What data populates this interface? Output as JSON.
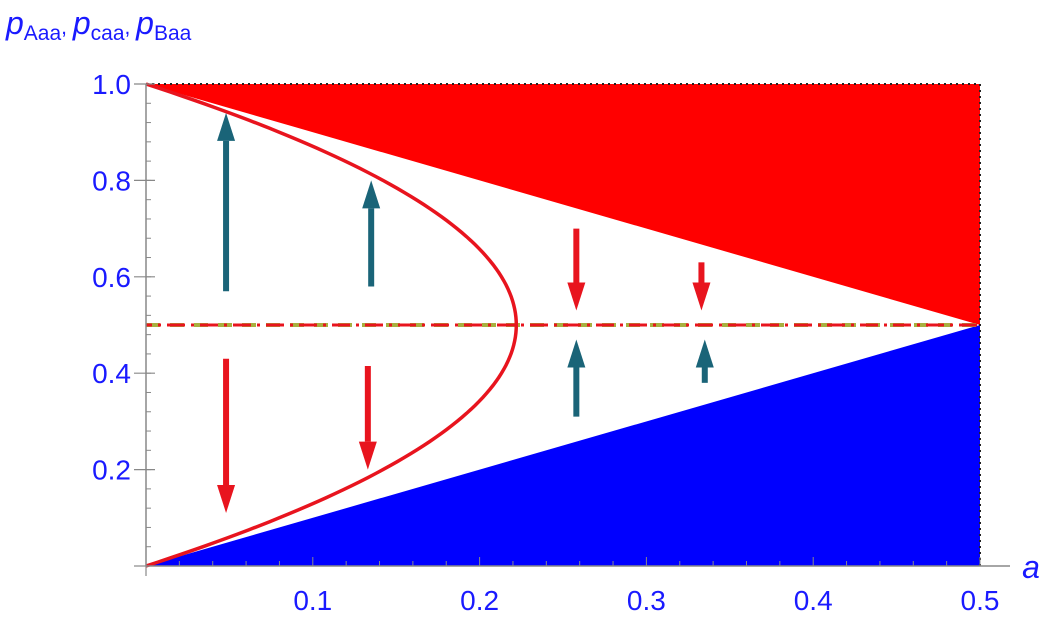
{
  "chart_data": {
    "type": "area",
    "title": "",
    "xlabel": "a",
    "ylabel_parts": [
      {
        "main": "p",
        "sub": "Aaa",
        "sep": ", "
      },
      {
        "main": "p",
        "sub": "caa",
        "sep": ", "
      },
      {
        "main": "p",
        "sub": "Baa",
        "sep": ""
      }
    ],
    "xlim": [
      0,
      0.5
    ],
    "ylim": [
      0,
      1.0
    ],
    "x_ticks": [
      {
        "value": 0.1,
        "label": "0.1"
      },
      {
        "value": 0.2,
        "label": "0.2"
      },
      {
        "value": 0.3,
        "label": "0.3"
      },
      {
        "value": 0.4,
        "label": "0.4"
      },
      {
        "value": 0.5,
        "label": "0.5"
      }
    ],
    "y_ticks": [
      {
        "value": 0.2,
        "label": "0.2"
      },
      {
        "value": 0.4,
        "label": "0.4"
      },
      {
        "value": 0.6,
        "label": "0.6"
      },
      {
        "value": 0.8,
        "label": "0.8"
      },
      {
        "value": 1.0,
        "label": "1.0"
      }
    ],
    "grid": false,
    "regions": [
      {
        "id": "upper-region",
        "color": "#ff0000",
        "points": [
          [
            0,
            1.0
          ],
          [
            0.5,
            1.0
          ],
          [
            0.5,
            0.5
          ]
        ]
      },
      {
        "id": "lower-region",
        "color": "#0000ff",
        "points": [
          [
            0,
            0
          ],
          [
            0.5,
            0.5
          ],
          [
            0.5,
            0
          ]
        ]
      }
    ],
    "curve": {
      "name": "",
      "color": "#e8141e",
      "vertex_x": 0.222,
      "center_y": 0.5,
      "half_height": 0.5
    },
    "dashed_line": {
      "y": 0.5,
      "x_range": [
        0,
        0.5
      ],
      "colors": [
        "#e8141e",
        "#a8b040"
      ]
    },
    "boundary_dotted": [
      {
        "points": [
          [
            0,
            1.0
          ],
          [
            0.5,
            1.0
          ]
        ]
      },
      {
        "points": [
          [
            0.5,
            0
          ],
          [
            0.5,
            1.0
          ]
        ]
      }
    ],
    "arrows": [
      {
        "x": 0.048,
        "y_from": 0.57,
        "y_to": 0.94,
        "color": "#1a6478"
      },
      {
        "x": 0.135,
        "y_from": 0.58,
        "y_to": 0.8,
        "color": "#1a6478"
      },
      {
        "x": 0.048,
        "y_from": 0.43,
        "y_to": 0.11,
        "color": "#e8141e"
      },
      {
        "x": 0.133,
        "y_from": 0.415,
        "y_to": 0.2,
        "color": "#e8141e"
      },
      {
        "x": 0.258,
        "y_from": 0.7,
        "y_to": 0.53,
        "color": "#e8141e"
      },
      {
        "x": 0.258,
        "y_from": 0.31,
        "y_to": 0.47,
        "color": "#1a6478"
      },
      {
        "x": 0.333,
        "y_from": 0.63,
        "y_to": 0.53,
        "color": "#e8141e"
      },
      {
        "x": 0.335,
        "y_from": 0.38,
        "y_to": 0.47,
        "color": "#1a6478"
      }
    ],
    "tick_label_color": "#1a1aff",
    "axis_color": "#888888"
  }
}
